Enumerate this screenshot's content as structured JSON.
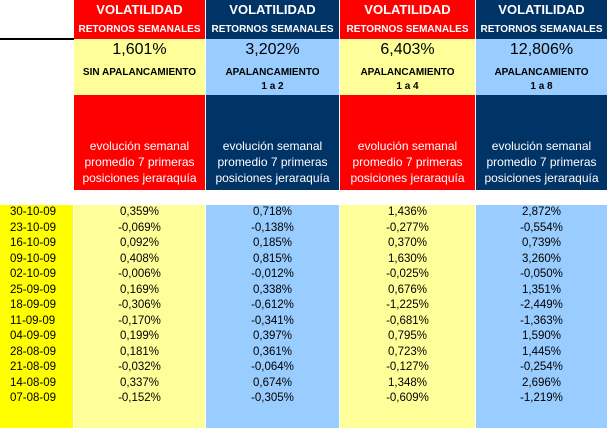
{
  "columns": [
    {
      "volatilidad": "VOLATILIDAD",
      "retornos": "RETORNOS SEMANALES",
      "pct": "1,601%",
      "apalancamiento": "SIN APALANCAMIENTO",
      "ratio": "",
      "desc1": "evolución semanal",
      "desc2": "promedio 7 primeras",
      "desc3": "posiciones jeraraquía",
      "values": [
        "0,359%",
        "-0,069%",
        "0,092%",
        "0,408%",
        "-0,006%",
        "0,169%",
        "-0,306%",
        "-0,170%",
        "0,199%",
        "0,181%",
        "-0,032%",
        "0,337%",
        "-0,152%"
      ]
    },
    {
      "volatilidad": "VOLATILIDAD",
      "retornos": "RETORNOS SEMANALES",
      "pct": "3,202%",
      "apalancamiento": "APALANCAMIENTO",
      "ratio": "1 a 2",
      "desc1": "evolución semanal",
      "desc2": "promedio 7 primeras",
      "desc3": "posiciones jeraraquía",
      "values": [
        "0,718%",
        "-0,138%",
        "0,185%",
        "0,815%",
        "-0,012%",
        "0,338%",
        "-0,612%",
        "-0,341%",
        "0,397%",
        "0,361%",
        "-0,064%",
        "0,674%",
        "-0,305%"
      ]
    },
    {
      "volatilidad": "VOLATILIDAD",
      "retornos": "RETORNOS SEMANALES",
      "pct": "6,403%",
      "apalancamiento": "APALANCAMIENTO",
      "ratio": "1 a 4",
      "desc1": "evolución semanal",
      "desc2": "promedio 7 primeras",
      "desc3": "posiciones jeraraquía",
      "values": [
        "1,436%",
        "-0,277%",
        "0,370%",
        "1,630%",
        "-0,025%",
        "0,676%",
        "-1,225%",
        "-0,681%",
        "0,795%",
        "0,723%",
        "-0,127%",
        "1,348%",
        "-0,609%"
      ]
    },
    {
      "volatilidad": "VOLATILIDAD",
      "retornos": "RETORNOS SEMANALES",
      "pct": "12,806%",
      "apalancamiento": "APALANCAMIENTO",
      "ratio": "1 a 8",
      "desc1": "evolución semanal",
      "desc2": "promedio 7 primeras",
      "desc3": "posiciones jeraraquía",
      "values": [
        "2,872%",
        "-0,554%",
        "0,739%",
        "3,260%",
        "-0,050%",
        "1,351%",
        "-2,449%",
        "-1,363%",
        "1,590%",
        "1,445%",
        "-0,254%",
        "2,696%",
        "-1,219%"
      ]
    }
  ],
  "dates": [
    "30-10-09",
    "23-10-09",
    "16-10-09",
    "09-10-09",
    "02-10-09",
    "25-09-09",
    "18-09-09",
    "11-09-09",
    "04-09-09",
    "28-08-09",
    "21-08-09",
    "14-08-09",
    "07-08-09"
  ],
  "colors": {
    "header_red": "#ff0000",
    "header_navy": "#003366",
    "cell_yellow": "#ffff99",
    "cell_blue": "#99ccff",
    "date_yellow": "#ffff00"
  }
}
